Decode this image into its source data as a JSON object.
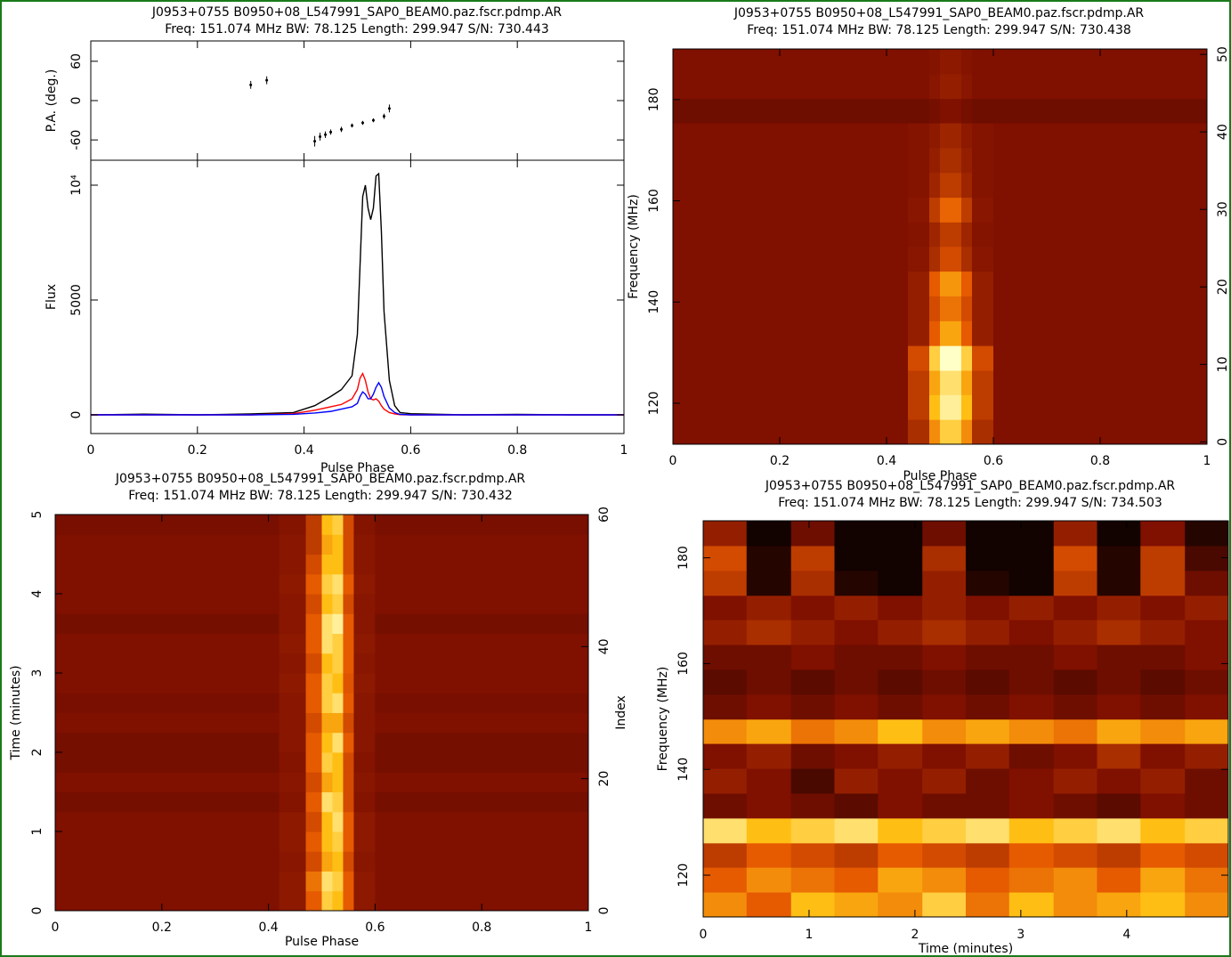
{
  "chart_data": [
    {
      "type": "errorbar",
      "title": "J0953+0755 B0950+08_L547991_SAP0_BEAM0.paz.fscr.pdmp.AR",
      "subtitle": "Freq: 151.074 MHz BW: 78.125 Length: 299.947 S/N: 730.443",
      "ylabel": "P.A. (deg.)",
      "xlim": [
        0,
        1
      ],
      "ylim": [
        -91,
        91
      ],
      "xticks": [
        0,
        0.2,
        0.4,
        0.6,
        0.8,
        1
      ],
      "yticks": [
        -60,
        0,
        60
      ],
      "x": [
        0.3,
        0.33,
        0.42,
        0.43,
        0.44,
        0.45,
        0.47,
        0.49,
        0.51,
        0.53,
        0.55,
        0.56
      ],
      "values": [
        24,
        31,
        -62,
        -55,
        -52,
        -48,
        -44,
        -38,
        -34,
        -30,
        -24,
        -12
      ],
      "errors": [
        6,
        6,
        8,
        6,
        5,
        4,
        4,
        3,
        3,
        3,
        4,
        6
      ],
      "color": "#000000"
    },
    {
      "type": "line",
      "ylabel": "Flux",
      "xlabel": "Pulse Phase",
      "xlim": [
        0,
        1
      ],
      "ylim": [
        -814,
        11085
      ],
      "xticks": [
        0,
        0.2,
        0.4,
        0.6,
        0.8,
        1
      ],
      "yticks": [
        0,
        5000,
        {
          "value": 10000,
          "label": "10⁴"
        }
      ],
      "x": [
        0,
        0.1,
        0.2,
        0.3,
        0.38,
        0.42,
        0.45,
        0.47,
        0.49,
        0.5,
        0.505,
        0.51,
        0.515,
        0.52,
        0.525,
        0.53,
        0.535,
        0.54,
        0.545,
        0.55,
        0.56,
        0.57,
        0.58,
        0.6,
        0.7,
        0.8,
        0.9,
        1
      ],
      "series": [
        {
          "color": "#000000",
          "values": [
            0,
            30,
            0,
            40,
            100,
            400,
            800,
            1100,
            1700,
            3500,
            6500,
            9500,
            10000,
            9000,
            8500,
            9000,
            10400,
            10500,
            8000,
            4500,
            1500,
            400,
            100,
            50,
            0,
            20,
            0,
            0
          ]
        },
        {
          "color": "#ff0000",
          "values": [
            0,
            0,
            0,
            0,
            50,
            200,
            350,
            450,
            700,
            1100,
            1600,
            1800,
            1500,
            1000,
            700,
            650,
            700,
            600,
            400,
            250,
            100,
            40,
            10,
            0,
            0,
            0,
            0,
            0
          ]
        },
        {
          "color": "#0000ff",
          "values": [
            0,
            0,
            0,
            0,
            20,
            80,
            150,
            250,
            350,
            500,
            800,
            1000,
            900,
            700,
            700,
            900,
            1200,
            1400,
            1200,
            800,
            300,
            100,
            20,
            0,
            0,
            0,
            0,
            0
          ]
        }
      ]
    },
    {
      "type": "heatmap",
      "colormap": "heat",
      "title": "J0953+0755 B0950+08_L547991_SAP0_BEAM0.paz.fscr.pdmp.AR",
      "subtitle": "Freq: 151.074 MHz BW: 78.125 Length: 299.947 S/N: 730.438",
      "ylabel": "Frequency (MHz)",
      "xlabel": "Pulse Phase",
      "xlim": [
        0,
        1
      ],
      "ylim": [
        111.9,
        190
      ],
      "y2lim": [
        -0.3,
        50.7
      ],
      "xticks": [
        0,
        0.2,
        0.4,
        0.6,
        0.8,
        1
      ],
      "yticks": [
        120,
        140,
        160,
        180
      ],
      "y2ticks": [
        0,
        10,
        20,
        30,
        40,
        50
      ],
      "x_bins": [
        0,
        0.44,
        0.48,
        0.5,
        0.52,
        0.54,
        0.56,
        0.6,
        1
      ],
      "y_bins": [
        111.9,
        116.8,
        121.7,
        126.5,
        131.4,
        136.3,
        141.2,
        146.1,
        151,
        155.8,
        160.7,
        165.6,
        170.5,
        175.4,
        180.2,
        185.1,
        190
      ],
      "z": [
        [
          0.35,
          0.45,
          0.7,
          0.85,
          0.85,
          0.7,
          0.45,
          0.35
        ],
        [
          0.35,
          0.5,
          0.8,
          0.95,
          0.95,
          0.8,
          0.5,
          0.35
        ],
        [
          0.35,
          0.5,
          0.75,
          0.9,
          0.9,
          0.75,
          0.5,
          0.35
        ],
        [
          0.35,
          0.55,
          0.85,
          1,
          1,
          0.85,
          0.55,
          0.35
        ],
        [
          0.35,
          0.4,
          0.6,
          0.75,
          0.75,
          0.6,
          0.4,
          0.35
        ],
        [
          0.35,
          0.4,
          0.55,
          0.65,
          0.65,
          0.55,
          0.4,
          0.35
        ],
        [
          0.35,
          0.4,
          0.6,
          0.72,
          0.72,
          0.6,
          0.4,
          0.35
        ],
        [
          0.35,
          0.37,
          0.45,
          0.55,
          0.55,
          0.45,
          0.37,
          0.35
        ],
        [
          0.35,
          0.36,
          0.42,
          0.5,
          0.5,
          0.42,
          0.36,
          0.35
        ],
        [
          0.35,
          0.37,
          0.5,
          0.62,
          0.62,
          0.5,
          0.37,
          0.35
        ],
        [
          0.35,
          0.36,
          0.42,
          0.5,
          0.5,
          0.42,
          0.36,
          0.35
        ],
        [
          0.35,
          0.36,
          0.4,
          0.45,
          0.45,
          0.4,
          0.36,
          0.35
        ],
        [
          0.35,
          0.36,
          0.38,
          0.42,
          0.42,
          0.38,
          0.36,
          0.35
        ],
        [
          0.3,
          0.3,
          0.32,
          0.35,
          0.35,
          0.32,
          0.3,
          0.3
        ],
        [
          0.35,
          0.35,
          0.37,
          0.4,
          0.4,
          0.37,
          0.35,
          0.35
        ],
        [
          0.35,
          0.35,
          0.36,
          0.38,
          0.38,
          0.36,
          0.35,
          0.35
        ]
      ]
    },
    {
      "type": "heatmap",
      "colormap": "heat",
      "title": "J0953+0755 B0950+08_L547991_SAP0_BEAM0.paz.fscr.pdmp.AR",
      "subtitle": "Freq: 151.074 MHz BW: 78.125 Length: 299.947 S/N: 730.432",
      "ylabel": "Time (minutes)",
      "y2label": "Index",
      "xlabel": "Pulse Phase",
      "xlim": [
        0,
        1
      ],
      "ylim": [
        0,
        5
      ],
      "y2lim": [
        0,
        60
      ],
      "xticks": [
        0,
        0.2,
        0.4,
        0.6,
        0.8,
        1
      ],
      "yticks": [
        0,
        1,
        2,
        3,
        4,
        5
      ],
      "y2ticks": [
        0,
        20,
        40,
        60
      ],
      "x_bins": [
        0,
        0.42,
        0.47,
        0.5,
        0.52,
        0.54,
        0.56,
        0.6,
        1
      ],
      "y_bins": [
        0,
        0.25,
        0.5,
        0.75,
        1,
        1.25,
        1.5,
        1.75,
        2,
        2.25,
        2.5,
        2.75,
        3,
        3.25,
        3.5,
        3.75,
        4,
        4.25,
        4.5,
        4.75,
        5
      ],
      "z": [
        [
          0.35,
          0.38,
          0.6,
          0.85,
          0.8,
          0.6,
          0.38,
          0.35
        ],
        [
          0.35,
          0.38,
          0.65,
          0.9,
          0.85,
          0.6,
          0.38,
          0.35
        ],
        [
          0.35,
          0.37,
          0.55,
          0.75,
          0.8,
          0.55,
          0.37,
          0.35
        ],
        [
          0.35,
          0.38,
          0.6,
          0.8,
          0.85,
          0.6,
          0.38,
          0.35
        ],
        [
          0.35,
          0.38,
          0.55,
          0.8,
          0.9,
          0.6,
          0.38,
          0.35
        ],
        [
          0.32,
          0.36,
          0.6,
          0.9,
          0.85,
          0.55,
          0.36,
          0.32
        ],
        [
          0.35,
          0.37,
          0.55,
          0.75,
          0.8,
          0.55,
          0.37,
          0.35
        ],
        [
          0.32,
          0.36,
          0.6,
          0.85,
          0.8,
          0.55,
          0.36,
          0.32
        ],
        [
          0.32,
          0.37,
          0.6,
          0.8,
          0.9,
          0.6,
          0.37,
          0.32
        ],
        [
          0.35,
          0.37,
          0.55,
          0.75,
          0.75,
          0.55,
          0.37,
          0.35
        ],
        [
          0.33,
          0.37,
          0.6,
          0.85,
          0.9,
          0.6,
          0.37,
          0.33
        ],
        [
          0.35,
          0.38,
          0.6,
          0.85,
          0.8,
          0.58,
          0.38,
          0.35
        ],
        [
          0.35,
          0.37,
          0.55,
          0.8,
          0.85,
          0.6,
          0.37,
          0.35
        ],
        [
          0.35,
          0.38,
          0.6,
          0.9,
          0.85,
          0.6,
          0.38,
          0.35
        ],
        [
          0.32,
          0.37,
          0.6,
          0.9,
          0.95,
          0.6,
          0.37,
          0.32
        ],
        [
          0.35,
          0.37,
          0.55,
          0.8,
          0.85,
          0.55,
          0.37,
          0.35
        ],
        [
          0.35,
          0.38,
          0.6,
          0.85,
          0.9,
          0.6,
          0.38,
          0.35
        ],
        [
          0.35,
          0.37,
          0.55,
          0.8,
          0.8,
          0.55,
          0.37,
          0.35
        ],
        [
          0.35,
          0.37,
          0.5,
          0.75,
          0.8,
          0.55,
          0.37,
          0.35
        ],
        [
          0.33,
          0.36,
          0.5,
          0.8,
          0.85,
          0.55,
          0.36,
          0.33
        ]
      ]
    },
    {
      "type": "heatmap",
      "colormap": "heat",
      "title": "J0953+0755 B0950+08_L547991_SAP0_BEAM0.paz.fscr.pdmp.AR",
      "subtitle": "Freq: 151.074 MHz BW: 78.125 Length: 299.947 S/N: 734.503",
      "ylabel": "Frequency (MHz)",
      "xlabel": "Time (minutes)",
      "xlim": [
        0,
        4.96
      ],
      "ylim": [
        112.1,
        187
      ],
      "xticks": [
        0,
        1,
        2,
        3,
        4
      ],
      "yticks": [
        120,
        140,
        160,
        180
      ],
      "x_bins": [
        0,
        0.41,
        0.83,
        1.24,
        1.65,
        2.07,
        2.48,
        2.89,
        3.31,
        3.72,
        4.13,
        4.55,
        4.96
      ],
      "y_bins": [
        112.1,
        116.8,
        121.5,
        126.1,
        130.8,
        135.5,
        140.2,
        144.9,
        149.5,
        154.2,
        158.9,
        163.6,
        168.3,
        172.9,
        177.6,
        182.3,
        187
      ],
      "z": [
        [
          0.7,
          0.6,
          0.8,
          0.75,
          0.7,
          0.85,
          0.65,
          0.8,
          0.7,
          0.75,
          0.8,
          0.7
        ],
        [
          0.6,
          0.7,
          0.65,
          0.6,
          0.75,
          0.7,
          0.6,
          0.65,
          0.7,
          0.6,
          0.75,
          0.65
        ],
        [
          0.5,
          0.6,
          0.55,
          0.5,
          0.6,
          0.55,
          0.5,
          0.6,
          0.55,
          0.5,
          0.6,
          0.55
        ],
        [
          0.9,
          0.8,
          0.85,
          0.9,
          0.8,
          0.85,
          0.9,
          0.8,
          0.85,
          0.9,
          0.8,
          0.85
        ],
        [
          0.3,
          0.35,
          0.3,
          0.25,
          0.35,
          0.3,
          0.3,
          0.35,
          0.3,
          0.25,
          0.35,
          0.3
        ],
        [
          0.4,
          0.35,
          0.2,
          0.4,
          0.35,
          0.4,
          0.3,
          0.35,
          0.4,
          0.35,
          0.4,
          0.3
        ],
        [
          0.35,
          0.4,
          0.3,
          0.35,
          0.4,
          0.35,
          0.4,
          0.3,
          0.35,
          0.45,
          0.35,
          0.4
        ],
        [
          0.7,
          0.75,
          0.65,
          0.7,
          0.8,
          0.7,
          0.75,
          0.7,
          0.65,
          0.75,
          0.7,
          0.75
        ],
        [
          0.3,
          0.35,
          0.3,
          0.35,
          0.3,
          0.35,
          0.3,
          0.35,
          0.3,
          0.35,
          0.3,
          0.35
        ],
        [
          0.25,
          0.3,
          0.25,
          0.3,
          0.25,
          0.3,
          0.25,
          0.3,
          0.25,
          0.3,
          0.25,
          0.3
        ],
        [
          0.3,
          0.3,
          0.35,
          0.3,
          0.3,
          0.35,
          0.3,
          0.3,
          0.35,
          0.3,
          0.3,
          0.35
        ],
        [
          0.4,
          0.45,
          0.4,
          0.35,
          0.4,
          0.45,
          0.4,
          0.35,
          0.4,
          0.45,
          0.4,
          0.35
        ],
        [
          0.35,
          0.4,
          0.35,
          0.4,
          0.35,
          0.4,
          0.35,
          0.4,
          0.35,
          0.4,
          0.35,
          0.4
        ],
        [
          0.5,
          0.1,
          0.45,
          0.1,
          0.05,
          0.4,
          0.1,
          0.05,
          0.5,
          0.1,
          0.5,
          0.3
        ],
        [
          0.55,
          0.1,
          0.5,
          0.05,
          0.05,
          0.45,
          0.05,
          0.05,
          0.55,
          0.1,
          0.5,
          0.2
        ],
        [
          0.4,
          0.05,
          0.3,
          0.05,
          0.05,
          0.3,
          0.05,
          0.05,
          0.4,
          0.05,
          0.35,
          0.1
        ]
      ]
    }
  ]
}
